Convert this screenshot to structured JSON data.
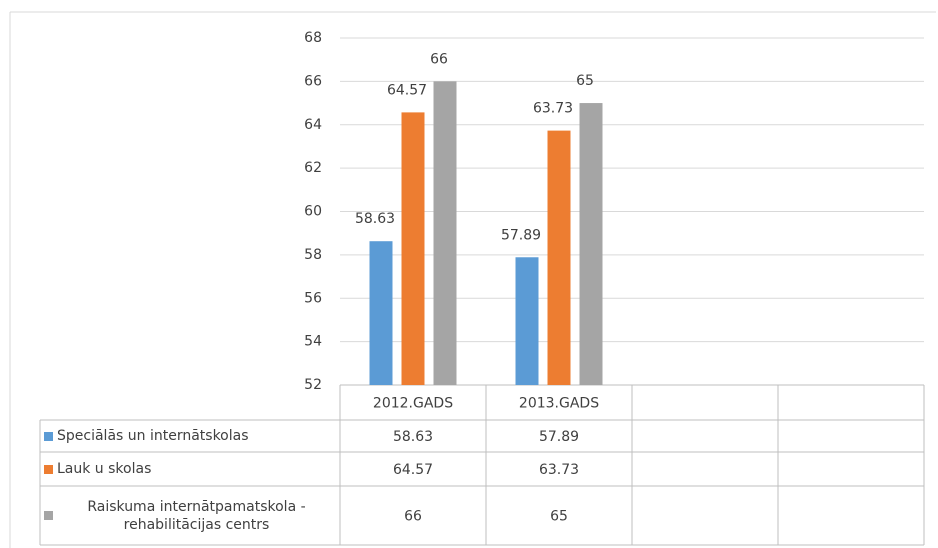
{
  "chart_data": {
    "type": "bar",
    "categories": [
      "2012.GADS",
      "2013.GADS",
      null,
      null
    ],
    "series": [
      {
        "name": "Speciālās un internātskolas",
        "color": "#5b9bd5",
        "values": [
          58.63,
          57.89,
          null,
          null
        ]
      },
      {
        "name": "Lauk u skolas",
        "color": "#ed7d31",
        "values": [
          64.57,
          63.73,
          null,
          null
        ]
      },
      {
        "name": "Raiskuma internātpamatskola - rehabilitācijas centrs",
        "color": "#a5a5a5",
        "values": [
          66,
          65,
          null,
          null
        ]
      }
    ],
    "ylim": [
      52,
      68
    ],
    "yticks": [
      52,
      54,
      56,
      58,
      60,
      62,
      64,
      66,
      68
    ],
    "grid": true
  }
}
